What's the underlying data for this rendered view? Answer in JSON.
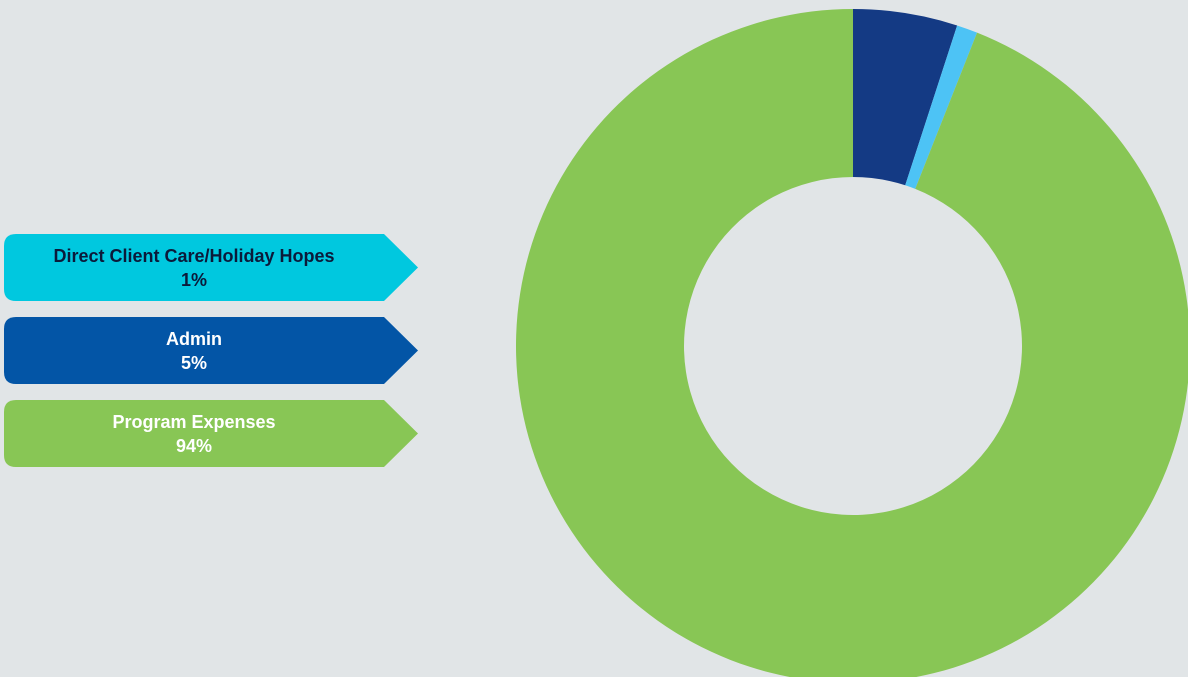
{
  "chart_data": {
    "type": "pie",
    "donut": true,
    "title": "",
    "categories": [
      "Admin",
      "Direct Client Care/Holiday Hopes",
      "Program Expenses"
    ],
    "values": [
      5,
      1,
      94
    ],
    "colors": [
      "#143A84",
      "#4DC3F5",
      "#88C655"
    ],
    "start_angle_deg": 0,
    "direction": "clockwise"
  },
  "legend": {
    "items": [
      {
        "label": "Direct Client Care/Holiday Hopes",
        "value": "1%",
        "color": "#00C8DF",
        "text_color": "#0B1A3A"
      },
      {
        "label": "Admin",
        "value": "5%",
        "color": "#0355A6",
        "text_color": "#FFFFFF"
      },
      {
        "label": "Program Expenses",
        "value": "94%",
        "color": "#88C655",
        "text_color": "#FFFFFF"
      }
    ]
  },
  "background": "#E1E5E7"
}
